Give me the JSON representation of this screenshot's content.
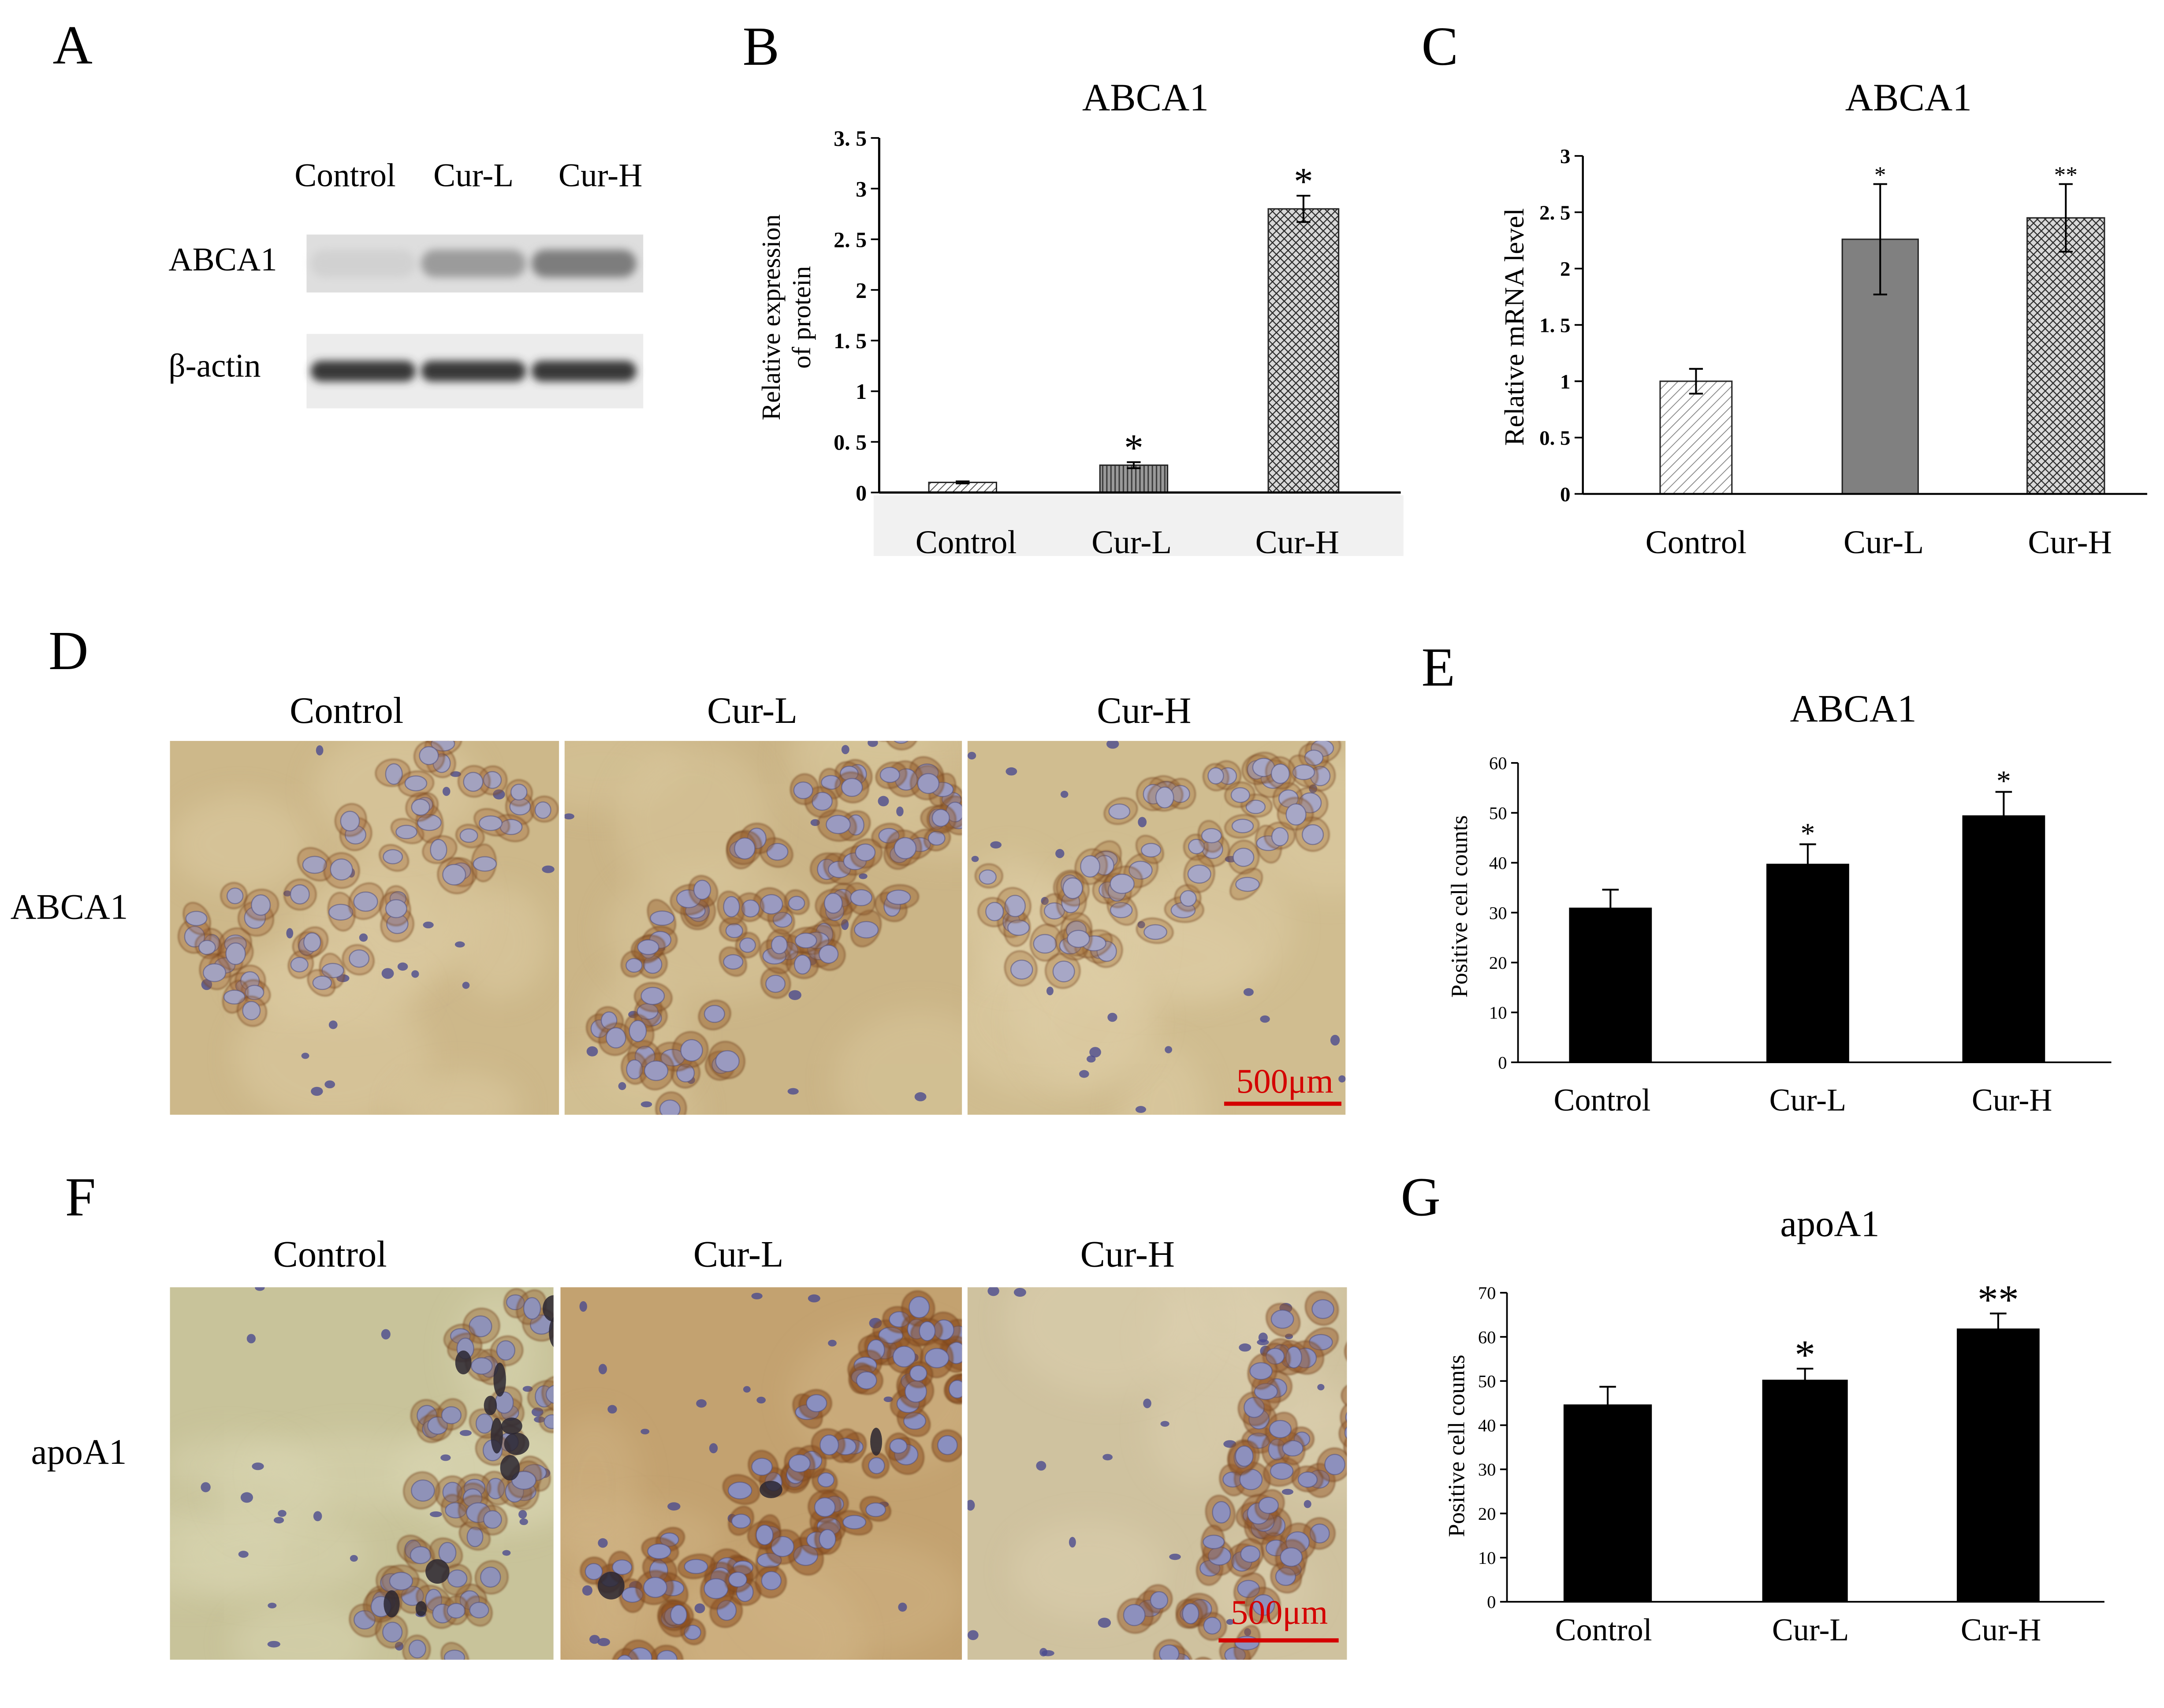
{
  "figure_panels": {
    "A": {
      "label": "A",
      "columns": [
        "Control",
        "Cur-L",
        "Cur-H"
      ],
      "rows": [
        "ABCA1",
        "β-actin"
      ],
      "band_intensity": [
        [
          0.08,
          0.35,
          0.5
        ],
        [
          0.85,
          0.85,
          0.85
        ]
      ]
    },
    "D": {
      "label": "D",
      "columns": [
        "Control",
        "Cur-L",
        "Cur-H"
      ],
      "row_label": "ABCA1",
      "scale_bar": "500μm"
    },
    "F": {
      "label": "F",
      "columns": [
        "Control",
        "Cur-L",
        "Cur-H"
      ],
      "row_label": "apoA1",
      "scale_bar": "500μm"
    }
  },
  "chart_data": [
    {
      "label": "B",
      "type": "bar",
      "title": "ABCA1",
      "ylabel": [
        "Relative expression",
        "of protein"
      ],
      "categories": [
        "Control",
        "Cur-L",
        "Cur-H"
      ],
      "values": [
        0.1,
        0.27,
        2.8
      ],
      "errors": [
        0.01,
        0.03,
        0.13
      ],
      "significance": [
        "",
        "*",
        "*"
      ],
      "ylim": [
        0,
        3.5
      ],
      "ytick_labels": [
        "0",
        "0. 5",
        "1",
        "1. 5",
        "2",
        "2. 5",
        "3",
        "3. 5"
      ],
      "bar_fills": [
        "diagonal-hatch",
        "vertical-stripes",
        "crosshatch"
      ],
      "grid": false
    },
    {
      "label": "C",
      "type": "bar",
      "title": "ABCA1",
      "ylabel": "Relative mRNA level",
      "categories": [
        "Control",
        "Cur-L",
        "Cur-H"
      ],
      "values": [
        1.0,
        2.26,
        2.45
      ],
      "errors": [
        0.11,
        0.49,
        0.3
      ],
      "significance": [
        "",
        "*",
        "**"
      ],
      "ylim": [
        0,
        3
      ],
      "ytick_labels": [
        "0",
        "0. 5",
        "1",
        "1. 5",
        "2",
        "2. 5",
        "3"
      ],
      "bar_fills": [
        "diagonal-hatch-light",
        "#808080",
        "crosshatch"
      ],
      "grid": false
    },
    {
      "label": "E",
      "type": "bar",
      "title": "ABCA1",
      "ylabel": "Positive cell counts",
      "categories": [
        "Control",
        "Cur-L",
        "Cur-H"
      ],
      "values": [
        31,
        39.8,
        49.5
      ],
      "errors": [
        3.6,
        3.9,
        4.7
      ],
      "significance": [
        "",
        "*",
        "*"
      ],
      "ylim": [
        0,
        60
      ],
      "ytick_labels": [
        "0",
        "10",
        "20",
        "30",
        "40",
        "50",
        "60"
      ],
      "bar_fills": [
        "#000000",
        "#000000",
        "#000000"
      ],
      "grid": false
    },
    {
      "label": "G",
      "type": "bar",
      "title": "apoA1",
      "ylabel": "Positive cell counts",
      "categories": [
        "Control",
        "Cur-L",
        "Cur-H"
      ],
      "values": [
        44.7,
        50.3,
        61.9
      ],
      "errors": [
        4,
        2.5,
        3.4
      ],
      "significance": [
        "",
        "*",
        "**"
      ],
      "ylim": [
        0,
        70
      ],
      "ytick_labels": [
        "0",
        "10",
        "20",
        "30",
        "40",
        "50",
        "60",
        "70"
      ],
      "bar_fills": [
        "#000000",
        "#000000",
        "#000000"
      ],
      "grid": false
    }
  ]
}
